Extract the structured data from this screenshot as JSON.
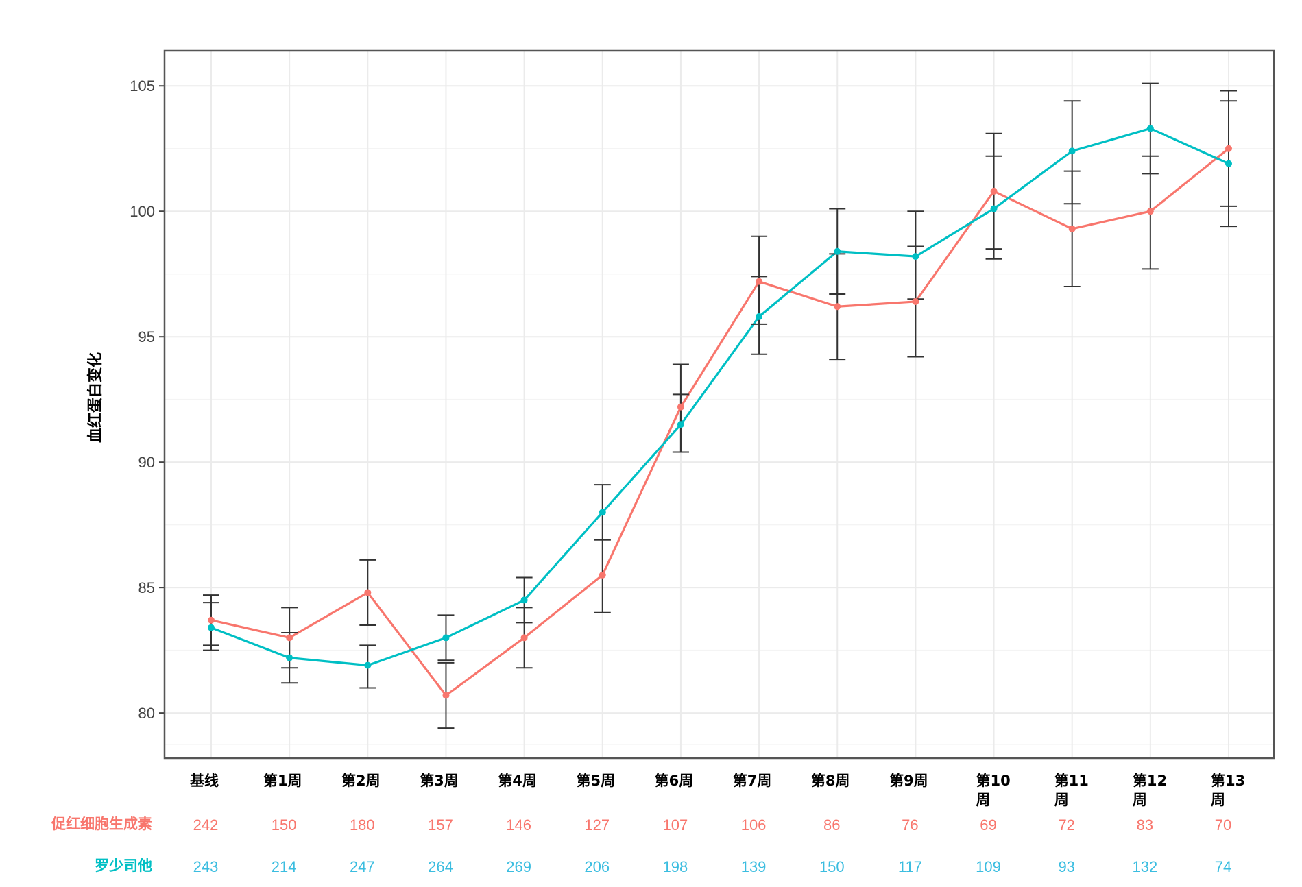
{
  "colors": {
    "epo": "#f8766d",
    "rox": "#00bfc4",
    "rox_text": "#3bbde0",
    "grid": "#ebebeb",
    "frame": "#555555",
    "errorbar": "#333333"
  },
  "chart_data": {
    "type": "line",
    "title": "",
    "xlabel": "",
    "ylabel": "血红蛋白变化",
    "ylim": [
      78.2,
      106.4
    ],
    "yticks": [
      80,
      85,
      90,
      95,
      100,
      105
    ],
    "grid": true,
    "legend": "none",
    "categories": [
      [
        "基线"
      ],
      [
        "第1周"
      ],
      [
        "第2周"
      ],
      [
        "第3周"
      ],
      [
        "第4周"
      ],
      [
        "第5周"
      ],
      [
        "第6周"
      ],
      [
        "第7周"
      ],
      [
        "第8周"
      ],
      [
        "第9周"
      ],
      [
        "第10",
        "周"
      ],
      [
        "第11",
        "周"
      ],
      [
        "第12",
        "周"
      ],
      [
        "第13",
        "周"
      ]
    ],
    "series": [
      {
        "key": "epo",
        "values": [
          83.7,
          83.0,
          84.8,
          80.7,
          83.0,
          85.5,
          92.2,
          97.2,
          96.2,
          96.4,
          100.8,
          99.3,
          100.0,
          102.5
        ],
        "err_low": [
          82.7,
          81.8,
          83.5,
          79.4,
          81.8,
          84.0,
          90.4,
          95.5,
          94.1,
          94.2,
          98.5,
          97.0,
          97.7,
          100.2
        ],
        "err_high": [
          84.7,
          84.2,
          86.1,
          82.0,
          84.2,
          86.9,
          93.9,
          99.0,
          98.3,
          98.6,
          103.1,
          101.6,
          102.2,
          104.8
        ]
      },
      {
        "key": "rox",
        "values": [
          83.4,
          82.2,
          81.9,
          83.0,
          84.5,
          88.0,
          91.5,
          95.8,
          98.4,
          98.2,
          100.1,
          102.4,
          103.3,
          101.9
        ],
        "err_low": [
          82.5,
          81.2,
          81.0,
          82.1,
          83.6,
          86.9,
          90.4,
          94.3,
          96.7,
          96.5,
          98.1,
          100.3,
          101.5,
          99.4
        ],
        "err_high": [
          84.4,
          83.2,
          82.7,
          83.9,
          85.4,
          89.1,
          92.7,
          97.4,
          100.1,
          100.0,
          102.2,
          104.4,
          105.1,
          104.4
        ]
      }
    ]
  },
  "risk_table": {
    "rows": [
      {
        "key": "epo",
        "label": "促红细胞生成素",
        "values": [
          "242",
          "150",
          "180",
          "157",
          "146",
          "127",
          "107",
          "106",
          "86",
          "76",
          "69",
          "72",
          "83",
          "70"
        ]
      },
      {
        "key": "rox",
        "label": "罗少司他",
        "values": [
          "243",
          "214",
          "247",
          "264",
          "269",
          "206",
          "198",
          "139",
          "150",
          "117",
          "109",
          "93",
          "132",
          "74"
        ]
      }
    ]
  }
}
